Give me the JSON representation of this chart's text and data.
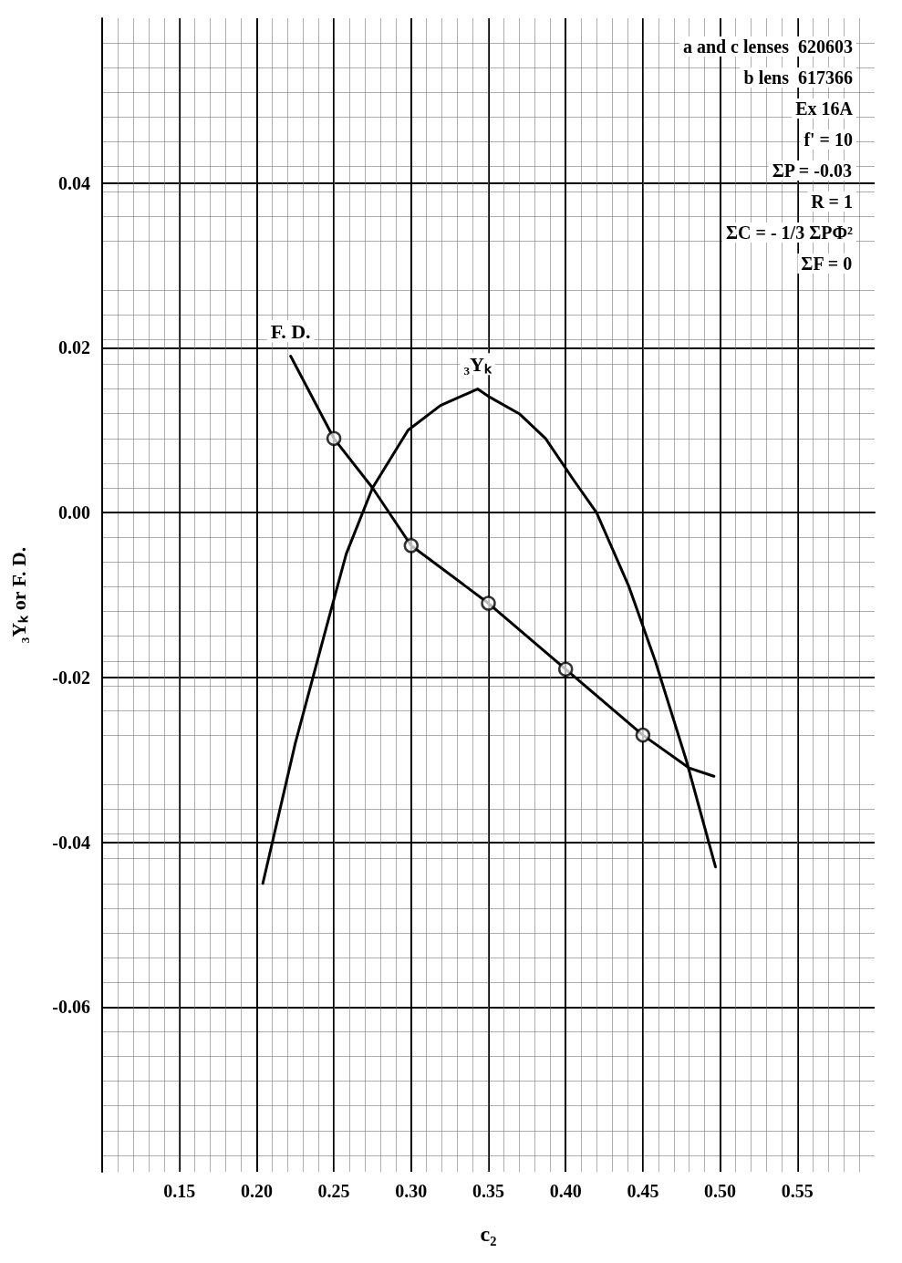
{
  "chart_data": {
    "type": "line",
    "xlabel": "c₂",
    "ylabel": "₃Yₖ or F. D.",
    "xlim": [
      0.1,
      0.6
    ],
    "ylim": [
      -0.08,
      0.06
    ],
    "xticks": [
      0.15,
      {
        "value": 0.2,
        "label": "0.20"
      },
      0.25,
      {
        "value": 0.3,
        "label": "0.30"
      },
      0.35,
      {
        "value": 0.4,
        "label": "0.40"
      },
      0.45,
      {
        "value": 0.5,
        "label": "0.50"
      },
      0.55
    ],
    "yticks": [
      {
        "value": -0.06,
        "label": "-0.06"
      },
      {
        "value": -0.04,
        "label": "-0.04"
      },
      {
        "value": -0.02,
        "label": "-0.02"
      },
      {
        "value": 0,
        "label": "0.00"
      },
      {
        "value": 0.02,
        "label": "0.02"
      },
      {
        "value": 0.04,
        "label": "0.04"
      }
    ],
    "grid": true,
    "annotations": [
      "a and c lenses  620603",
      "b lens  617366",
      "Ex 16A",
      "f' = 10",
      "ΣP = -0.03",
      "R = 1",
      "ΣC = - 1/3 ΣPΦ²",
      "ΣF = 0"
    ],
    "series": [
      {
        "name": "₃Yₖ",
        "color": "#000000",
        "marker": "none",
        "x": [
          0.204,
          0.225,
          0.245,
          0.258,
          0.275,
          0.298,
          0.319,
          0.343,
          0.351,
          0.37,
          0.387,
          0.405,
          0.42,
          0.441,
          0.458,
          0.478,
          0.497
        ],
        "values": [
          -0.045,
          -0.028,
          -0.014,
          -0.005,
          0.003,
          0.01,
          0.013,
          0.015,
          0.014,
          0.012,
          0.009,
          0.004,
          0.0,
          -0.009,
          -0.018,
          -0.03,
          -0.043
        ]
      },
      {
        "name": "F. D.",
        "color": "#000000",
        "marker": "none",
        "x": [
          0.222,
          0.25,
          0.275,
          0.3,
          0.35,
          0.4,
          0.45,
          0.48,
          0.496
        ],
        "values": [
          0.019,
          0.009,
          0.003,
          -0.004,
          -0.011,
          -0.019,
          -0.027,
          -0.031,
          -0.032
        ]
      },
      {
        "type": "scatter",
        "color": "#000000",
        "marker": "circle",
        "x": [
          0.25,
          0.3,
          0.35,
          0.4,
          0.45
        ],
        "values": [
          0.009,
          -0.004,
          -0.011,
          -0.019,
          -0.027
        ]
      }
    ]
  }
}
